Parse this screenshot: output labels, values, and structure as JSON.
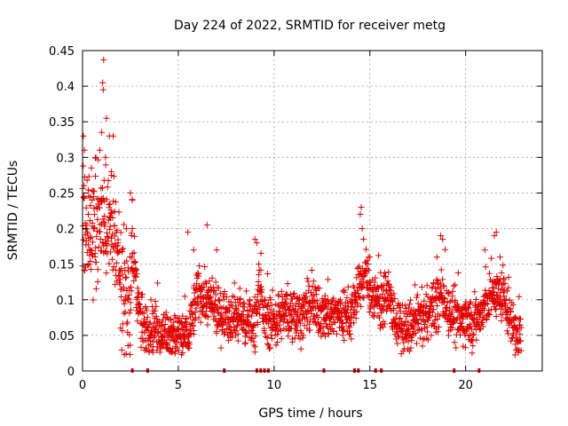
{
  "chart_data": {
    "type": "scatter",
    "title": "Day 224 of 2022, SRMTID for receiver metg",
    "xlabel": "GPS time / hours",
    "ylabel": "SRMTID / TECUs",
    "xlim": [
      0,
      24
    ],
    "ylim": [
      0,
      0.45
    ],
    "grid": true,
    "x_ticks": [
      0,
      5,
      10,
      15,
      20
    ],
    "x_tick_labels": [
      "0",
      "5",
      "10",
      "15",
      "20"
    ],
    "y_ticks": [
      0,
      0.05,
      0.1,
      0.15,
      0.2,
      0.25,
      0.3,
      0.35,
      0.4,
      0.45
    ],
    "y_tick_labels": [
      "0",
      "0.05",
      "0.1",
      "0.15",
      "0.2",
      "0.25",
      "0.3",
      "0.35",
      "0.4",
      "0.45"
    ],
    "marker": "plus",
    "color": "#e00000",
    "trend": [
      [
        0.0,
        0.22
      ],
      [
        0.5,
        0.19
      ],
      [
        1.0,
        0.22
      ],
      [
        1.5,
        0.2
      ],
      [
        2.0,
        0.12
      ],
      [
        2.5,
        0.1
      ],
      [
        2.7,
        0.16
      ],
      [
        2.9,
        0.09
      ],
      [
        3.2,
        0.06
      ],
      [
        3.8,
        0.06
      ],
      [
        4.5,
        0.05
      ],
      [
        5.0,
        0.05
      ],
      [
        5.5,
        0.05
      ],
      [
        6.0,
        0.11
      ],
      [
        6.5,
        0.1
      ],
      [
        7.0,
        0.08
      ],
      [
        7.5,
        0.08
      ],
      [
        8.0,
        0.08
      ],
      [
        8.5,
        0.07
      ],
      [
        9.0,
        0.07
      ],
      [
        9.2,
        0.12
      ],
      [
        9.5,
        0.07
      ],
      [
        10.0,
        0.07
      ],
      [
        10.5,
        0.08
      ],
      [
        11.0,
        0.08
      ],
      [
        11.5,
        0.08
      ],
      [
        12.0,
        0.09
      ],
      [
        12.5,
        0.08
      ],
      [
        13.0,
        0.08
      ],
      [
        13.5,
        0.08
      ],
      [
        14.0,
        0.08
      ],
      [
        14.5,
        0.12
      ],
      [
        14.8,
        0.14
      ],
      [
        15.0,
        0.11
      ],
      [
        15.5,
        0.1
      ],
      [
        16.0,
        0.1
      ],
      [
        16.5,
        0.06
      ],
      [
        17.0,
        0.06
      ],
      [
        17.5,
        0.07
      ],
      [
        18.0,
        0.08
      ],
      [
        18.5,
        0.09
      ],
      [
        18.8,
        0.11
      ],
      [
        19.0,
        0.09
      ],
      [
        19.5,
        0.07
      ],
      [
        20.0,
        0.07
      ],
      [
        20.5,
        0.07
      ],
      [
        21.0,
        0.09
      ],
      [
        21.5,
        0.11
      ],
      [
        22.0,
        0.1
      ],
      [
        22.5,
        0.06
      ],
      [
        22.9,
        0.05
      ]
    ],
    "spread": 0.022,
    "spikes": [
      [
        0.05,
        0.33
      ],
      [
        0.1,
        0.31
      ],
      [
        0.3,
        0.22
      ],
      [
        0.5,
        0.24
      ],
      [
        0.7,
        0.3
      ],
      [
        0.9,
        0.31
      ],
      [
        1.0,
        0.335
      ],
      [
        1.05,
        0.405
      ],
      [
        1.08,
        0.395
      ],
      [
        1.1,
        0.437
      ],
      [
        1.2,
        0.3
      ],
      [
        1.25,
        0.355
      ],
      [
        1.4,
        0.33
      ],
      [
        1.6,
        0.33
      ],
      [
        1.5,
        0.28
      ],
      [
        2.5,
        0.25
      ],
      [
        2.6,
        0.2
      ],
      [
        2.6,
        0.24
      ],
      [
        6.5,
        0.205
      ],
      [
        5.5,
        0.195
      ],
      [
        5.8,
        0.17
      ],
      [
        7.0,
        0.17
      ],
      [
        9.0,
        0.185
      ],
      [
        9.1,
        0.18
      ],
      [
        9.2,
        0.15
      ],
      [
        14.5,
        0.22
      ],
      [
        14.55,
        0.23
      ],
      [
        14.6,
        0.2
      ],
      [
        15.0,
        0.16
      ],
      [
        18.5,
        0.16
      ],
      [
        18.7,
        0.19
      ],
      [
        18.8,
        0.185
      ],
      [
        21.0,
        0.17
      ],
      [
        21.5,
        0.19
      ],
      [
        21.6,
        0.195
      ],
      [
        21.8,
        0.16
      ],
      [
        22.0,
        0.13
      ]
    ],
    "x_rug_marks": [
      2.6,
      3.4,
      7.4,
      9.1,
      9.3,
      9.5,
      9.7,
      12.6,
      14.2,
      14.4,
      15.3,
      15.6,
      19.4,
      20.7
    ]
  }
}
